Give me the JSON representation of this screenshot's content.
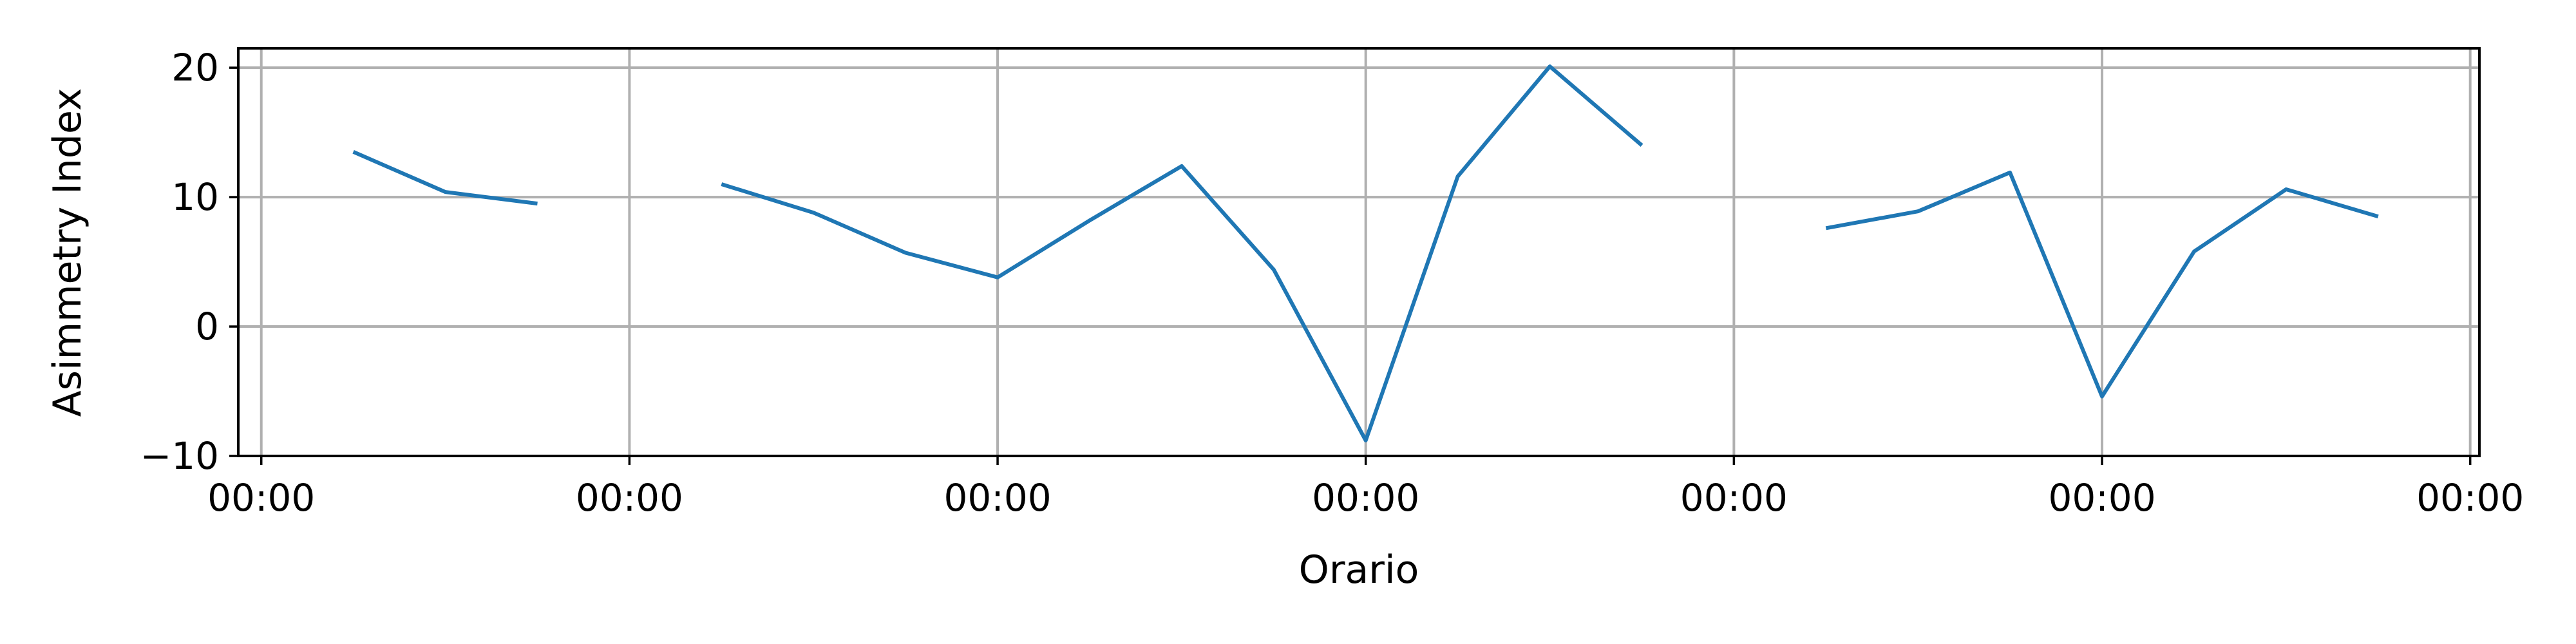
{
  "chart_data": {
    "type": "line",
    "title": "",
    "xlabel": "Orario",
    "ylabel": "Asimmetry Index",
    "grid": true,
    "xlim": [
      -0.25,
      24.1
    ],
    "ylim": [
      -10,
      21.5
    ],
    "x_ticks": [
      0,
      4,
      8,
      12,
      16,
      20,
      24
    ],
    "x_tick_labels": [
      "00:00",
      "00:00",
      "00:00",
      "00:00",
      "00:00",
      "00:00",
      "00:00"
    ],
    "y_ticks": [
      -10,
      0,
      10,
      20
    ],
    "y_tick_labels": [
      "−10",
      "0",
      "10",
      "20"
    ],
    "colors": {
      "series": "#1f77b4",
      "grid": "#b0b0b0"
    },
    "series": [
      {
        "segments": [
          [
            [
              1,
              13.5
            ],
            [
              2,
              10.4
            ],
            [
              3,
              9.5
            ]
          ],
          [
            [
              5,
              11.0
            ],
            [
              6,
              8.8
            ],
            [
              7,
              5.7
            ],
            [
              8,
              3.8
            ],
            [
              9,
              8.2
            ],
            [
              10,
              12.4
            ],
            [
              11,
              4.4
            ],
            [
              12,
              -8.8
            ],
            [
              13,
              11.6
            ],
            [
              14,
              20.1
            ],
            [
              15,
              14.0
            ]
          ],
          [
            [
              17,
              7.6
            ],
            [
              18,
              8.9
            ],
            [
              19,
              11.9
            ],
            [
              20,
              -5.4
            ],
            [
              21,
              5.8
            ],
            [
              22,
              10.6
            ],
            [
              23,
              8.5
            ]
          ]
        ]
      }
    ]
  }
}
